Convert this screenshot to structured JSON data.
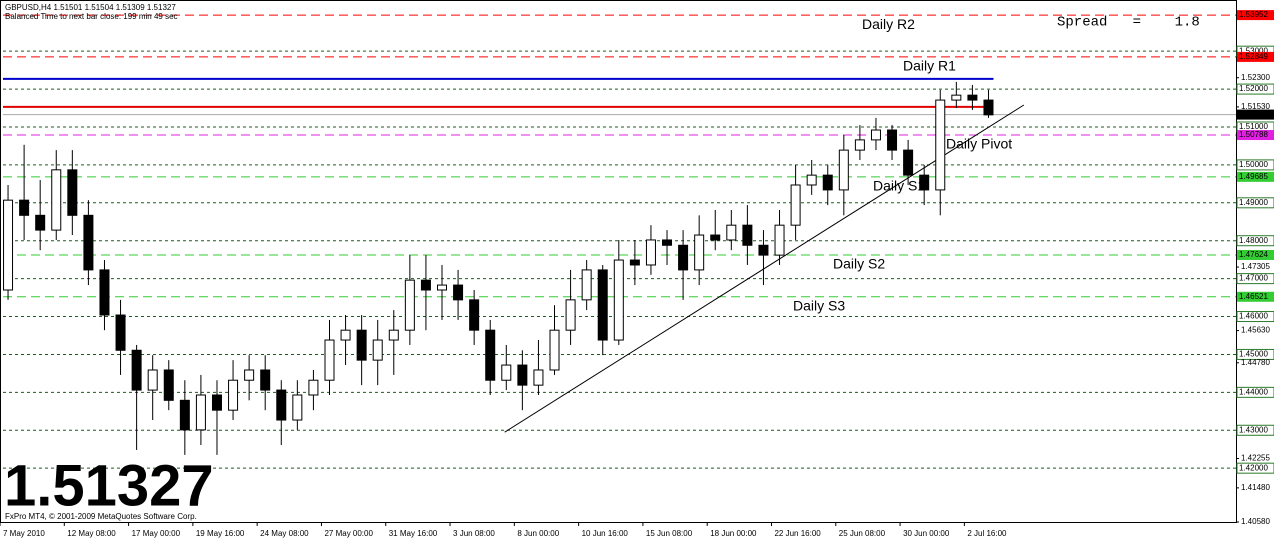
{
  "chart_data": {
    "type": "candlestick",
    "title": "GBPUSD,H4  1.51501 1.51504 1.51309 1.51327",
    "subtitle": "Balanced Time to next bar close: 199 min 49 sec",
    "spread": "Spread   =    1.8",
    "bid": 1.51327,
    "footer": "FxPro MT4, © 2001-2009 MetaQuotes Software Corp.",
    "x": [
      0,
      1,
      2,
      3,
      4,
      5,
      6,
      7,
      8,
      9,
      10,
      11,
      12,
      13,
      14,
      15,
      16,
      17,
      18,
      19,
      20,
      21,
      22,
      23,
      24,
      25,
      26,
      27,
      28,
      29,
      30,
      31,
      32,
      33,
      34,
      35,
      36,
      37,
      38,
      39,
      40,
      41,
      42,
      43,
      44,
      45,
      46,
      47,
      48,
      49,
      50,
      51,
      52,
      53,
      54,
      55,
      56,
      57,
      58,
      59,
      60,
      61
    ],
    "open": [
      1.467,
      1.4907,
      1.4867,
      1.4828,
      1.4987,
      1.4867,
      1.4723,
      1.4604,
      1.4511,
      1.4406,
      1.4459,
      1.4379,
      1.4301,
      1.4393,
      1.4353,
      1.4432,
      1.4459,
      1.4406,
      1.4327,
      1.4393,
      1.4432,
      1.4538,
      1.4564,
      1.4485,
      1.4538,
      1.4564,
      1.4696,
      1.467,
      1.4683,
      1.4644,
      1.4564,
      1.4432,
      1.4472,
      1.4419,
      1.4459,
      1.4564,
      1.4644,
      1.4723,
      1.4538,
      1.4749,
      1.4736,
      1.4802,
      1.4788,
      1.4723,
      1.4815,
      1.4802,
      1.4841,
      1.4788,
      1.4762,
      1.4841,
      1.4947,
      1.4973,
      1.4934,
      1.5039,
      1.5066,
      1.5092,
      1.5039,
      1.4973,
      1.4934,
      1.5171,
      1.5184,
      1.5171
    ],
    "high": [
      1.4947,
      1.5053,
      1.496,
      1.5039,
      1.5039,
      1.4907,
      1.4749,
      1.4644,
      1.4525,
      1.4498,
      1.4485,
      1.4432,
      1.4446,
      1.4432,
      1.4485,
      1.4498,
      1.4498,
      1.4432,
      1.4432,
      1.4459,
      1.4591,
      1.4604,
      1.4604,
      1.4591,
      1.4617,
      1.4762,
      1.4762,
      1.4736,
      1.4723,
      1.467,
      1.4591,
      1.4525,
      1.4511,
      1.4538,
      1.463,
      1.4723,
      1.4749,
      1.4736,
      1.4802,
      1.4802,
      1.4841,
      1.4828,
      1.4828,
      1.4867,
      1.4881,
      1.4881,
      1.4894,
      1.4828,
      1.4881,
      1.5,
      1.5013,
      1.5,
      1.5079,
      1.5105,
      1.5124,
      1.5105,
      1.5066,
      1.5,
      1.5198,
      1.5219,
      1.5211,
      1.5198
    ],
    "low": [
      1.4644,
      1.4802,
      1.4775,
      1.4802,
      1.4815,
      1.4683,
      1.4564,
      1.4446,
      1.4248,
      1.4327,
      1.4353,
      1.4235,
      1.4261,
      1.4235,
      1.4327,
      1.4379,
      1.4353,
      1.4261,
      1.4301,
      1.4353,
      1.4393,
      1.4472,
      1.4419,
      1.4419,
      1.4446,
      1.4525,
      1.4564,
      1.4591,
      1.4591,
      1.4525,
      1.4393,
      1.4406,
      1.4353,
      1.4393,
      1.4446,
      1.4525,
      1.4617,
      1.4498,
      1.4525,
      1.4683,
      1.471,
      1.4736,
      1.4644,
      1.4683,
      1.4775,
      1.4775,
      1.4736,
      1.4683,
      1.4736,
      1.4802,
      1.4921,
      1.4894,
      1.4867,
      1.5013,
      1.5039,
      1.5013,
      1.4947,
      1.4894,
      1.4867,
      1.515,
      1.5145,
      1.5124
    ],
    "close": [
      1.4907,
      1.4867,
      1.4828,
      1.4987,
      1.4867,
      1.4723,
      1.4604,
      1.4511,
      1.4406,
      1.4459,
      1.4379,
      1.4301,
      1.4393,
      1.4353,
      1.4432,
      1.4459,
      1.4406,
      1.4327,
      1.4393,
      1.4432,
      1.4538,
      1.4564,
      1.4485,
      1.4538,
      1.4564,
      1.4696,
      1.467,
      1.4683,
      1.4644,
      1.4564,
      1.4432,
      1.4472,
      1.4419,
      1.4459,
      1.4564,
      1.4644,
      1.4723,
      1.4538,
      1.4749,
      1.4736,
      1.4802,
      1.4788,
      1.4723,
      1.4815,
      1.4802,
      1.4841,
      1.4788,
      1.4762,
      1.4841,
      1.4947,
      1.4973,
      1.4934,
      1.5039,
      1.5066,
      1.5092,
      1.5039,
      1.4973,
      1.4934,
      1.5171,
      1.5184,
      1.5171,
      1.5132
    ],
    "xlim": [
      -0.5,
      76.4
    ],
    "ylim": [
      1.4058,
      1.5435
    ],
    "xticks": [
      {
        "value": -0.5,
        "label": "7 May 2010"
      },
      {
        "value": 3.5,
        "label": "12 May 08:00"
      },
      {
        "value": 7.5,
        "label": "17 May 00:00"
      },
      {
        "value": 11.5,
        "label": "19 May 16:00"
      },
      {
        "value": 15.5,
        "label": "24 May 08:00"
      },
      {
        "value": 19.5,
        "label": "27 May 00:00"
      },
      {
        "value": 23.5,
        "label": "31 May 16:00"
      },
      {
        "value": 27.5,
        "label": "3 Jun 08:00"
      },
      {
        "value": 31.5,
        "label": "8 Jun 00:00"
      },
      {
        "value": 35.5,
        "label": "10 Jun 16:00"
      },
      {
        "value": 39.5,
        "label": "15 Jun 08:00"
      },
      {
        "value": 43.5,
        "label": "18 Jun 00:00"
      },
      {
        "value": 47.5,
        "label": "22 Jun 16:00"
      },
      {
        "value": 51.5,
        "label": "25 Jun 08:00"
      },
      {
        "value": 55.5,
        "label": "30 Jun 00:00"
      },
      {
        "value": 59.5,
        "label": "2 Jul 16:00"
      }
    ],
    "yticks": [
      {
        "value": 1.523,
        "label": "1.52300"
      },
      {
        "value": 1.5153,
        "label": "1.51530"
      },
      1.47305,
      {
        "value": 1.4563,
        "label": "1.45630"
      },
      {
        "value": 1.4478,
        "label": "1.44780"
      },
      1.42255,
      {
        "value": 1.4148,
        "label": "1.41480"
      },
      {
        "value": 1.4058,
        "label": "1.40580"
      }
    ],
    "grid_ticks": [
      {
        "value": 1.53,
        "label": "1.53000"
      },
      {
        "value": 1.52,
        "label": "1.52000"
      },
      {
        "value": 1.51,
        "label": "1.51000"
      },
      {
        "value": 1.5,
        "label": "1.50000"
      },
      {
        "value": 1.49,
        "label": "1.49000"
      },
      {
        "value": 1.48,
        "label": "1.48000"
      },
      {
        "value": 1.47,
        "label": "1.47000"
      },
      {
        "value": 1.46,
        "label": "1.46000"
      },
      {
        "value": 1.45,
        "label": "1.45000"
      },
      {
        "value": 1.44,
        "label": "1.44000"
      },
      {
        "value": 1.43,
        "label": "1.43000"
      },
      {
        "value": 1.42,
        "label": "1.42000"
      }
    ],
    "levels": [
      {
        "name": "Daily R2",
        "value": 1.53952,
        "color": "#ff0000"
      },
      {
        "name": "Daily R1",
        "value": 1.52849,
        "color": "#ff0000"
      },
      {
        "name": "Daily Pivot",
        "value": 1.50788,
        "color": "#e020e0"
      },
      {
        "name": "Daily S1",
        "value": 1.49685,
        "color": "#33cc33"
      },
      {
        "name": "Daily S2",
        "value": 1.47624,
        "color": "#33cc33"
      },
      {
        "name": "Daily S3",
        "value": 1.46521,
        "color": "#33cc33"
      }
    ],
    "lines": [
      {
        "value": 1.5227,
        "color": "#0000cc"
      },
      {
        "value": 1.5153,
        "color": "#e00000"
      }
    ],
    "trendline": {
      "x": [
        30.9,
        63.2
      ],
      "y": [
        1.4295,
        1.5158
      ]
    }
  }
}
